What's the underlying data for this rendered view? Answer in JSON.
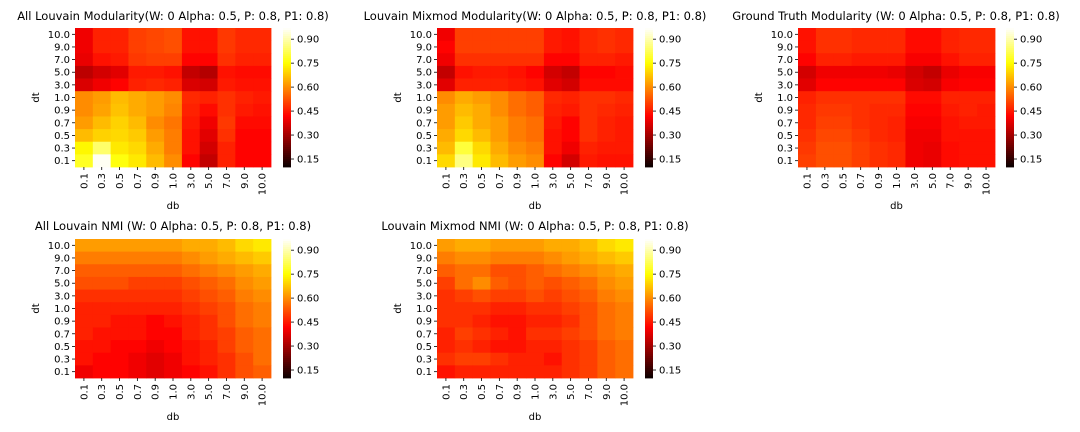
{
  "chart_data": [
    {
      "type": "heatmap",
      "title": "All Louvain Modularity(W: 0 Alpha: 0.5, P: 0.8, P1: 0.8)",
      "xlabel": "db",
      "ylabel": "dt",
      "x_categories": [
        "0.1",
        "0.3",
        "0.5",
        "0.7",
        "0.9",
        "1.0",
        "3.0",
        "5.0",
        "7.0",
        "9.0",
        "10.0"
      ],
      "y_categories": [
        "10.0",
        "9.0",
        "7.0",
        "5.0",
        "3.0",
        "1.0",
        "0.9",
        "0.7",
        "0.5",
        "0.3",
        "0.1"
      ],
      "values": [
        [
          0.4,
          0.46,
          0.46,
          0.5,
          0.51,
          0.52,
          0.44,
          0.44,
          0.49,
          0.47,
          0.47
        ],
        [
          0.4,
          0.46,
          0.46,
          0.5,
          0.51,
          0.52,
          0.44,
          0.44,
          0.49,
          0.47,
          0.47
        ],
        [
          0.39,
          0.44,
          0.45,
          0.49,
          0.5,
          0.5,
          0.42,
          0.42,
          0.48,
          0.46,
          0.46
        ],
        [
          0.33,
          0.36,
          0.38,
          0.45,
          0.45,
          0.44,
          0.34,
          0.32,
          0.44,
          0.43,
          0.43
        ],
        [
          0.37,
          0.4,
          0.42,
          0.46,
          0.47,
          0.46,
          0.37,
          0.36,
          0.45,
          0.44,
          0.44
        ],
        [
          0.6,
          0.62,
          0.66,
          0.64,
          0.62,
          0.6,
          0.47,
          0.46,
          0.48,
          0.46,
          0.45
        ],
        [
          0.6,
          0.63,
          0.67,
          0.64,
          0.62,
          0.59,
          0.46,
          0.43,
          0.48,
          0.45,
          0.44
        ],
        [
          0.62,
          0.66,
          0.69,
          0.66,
          0.6,
          0.57,
          0.45,
          0.4,
          0.49,
          0.43,
          0.43
        ],
        [
          0.66,
          0.69,
          0.7,
          0.68,
          0.62,
          0.58,
          0.44,
          0.38,
          0.48,
          0.42,
          0.42
        ],
        [
          0.74,
          0.84,
          0.72,
          0.7,
          0.64,
          0.58,
          0.44,
          0.36,
          0.46,
          0.42,
          0.42
        ],
        [
          0.78,
          0.96,
          0.76,
          0.72,
          0.66,
          0.6,
          0.42,
          0.34,
          0.46,
          0.42,
          0.42
        ]
      ],
      "colorbar": {
        "ticks": [
          "0.15",
          "0.30",
          "0.45",
          "0.60",
          "0.75",
          "0.90"
        ],
        "range": [
          0.1,
          0.97
        ],
        "colormap": "hot"
      }
    },
    {
      "type": "heatmap",
      "title": "Louvain Mixmod Modularity(W: 0 Alpha: 0.5, P: 0.8, P1: 0.8)",
      "xlabel": "db",
      "ylabel": "dt",
      "x_categories": [
        "0.1",
        "0.3",
        "0.5",
        "0.7",
        "0.9",
        "1.0",
        "3.0",
        "5.0",
        "7.0",
        "9.0",
        "10.0"
      ],
      "y_categories": [
        "10.0",
        "9.0",
        "7.0",
        "5.0",
        "3.0",
        "1.0",
        "0.9",
        "0.7",
        "0.5",
        "0.3",
        "0.1"
      ],
      "values": [
        [
          0.4,
          0.5,
          0.5,
          0.5,
          0.5,
          0.5,
          0.45,
          0.44,
          0.47,
          0.48,
          0.47
        ],
        [
          0.42,
          0.5,
          0.5,
          0.5,
          0.5,
          0.5,
          0.45,
          0.44,
          0.47,
          0.48,
          0.47
        ],
        [
          0.4,
          0.48,
          0.48,
          0.48,
          0.48,
          0.48,
          0.42,
          0.42,
          0.46,
          0.46,
          0.45
        ],
        [
          0.34,
          0.44,
          0.45,
          0.45,
          0.44,
          0.42,
          0.36,
          0.34,
          0.42,
          0.42,
          0.43
        ],
        [
          0.38,
          0.46,
          0.46,
          0.46,
          0.45,
          0.44,
          0.38,
          0.36,
          0.43,
          0.43,
          0.43
        ],
        [
          0.6,
          0.64,
          0.62,
          0.6,
          0.56,
          0.54,
          0.47,
          0.46,
          0.48,
          0.48,
          0.47
        ],
        [
          0.62,
          0.66,
          0.64,
          0.6,
          0.56,
          0.54,
          0.46,
          0.45,
          0.48,
          0.47,
          0.46
        ],
        [
          0.62,
          0.68,
          0.64,
          0.62,
          0.58,
          0.56,
          0.45,
          0.42,
          0.48,
          0.46,
          0.45
        ],
        [
          0.64,
          0.7,
          0.66,
          0.62,
          0.58,
          0.56,
          0.44,
          0.42,
          0.48,
          0.46,
          0.45
        ],
        [
          0.66,
          0.8,
          0.7,
          0.64,
          0.6,
          0.58,
          0.44,
          0.4,
          0.46,
          0.45,
          0.45
        ],
        [
          0.7,
          0.86,
          0.72,
          0.66,
          0.62,
          0.6,
          0.42,
          0.36,
          0.45,
          0.44,
          0.44
        ]
      ],
      "colorbar": {
        "ticks": [
          "0.15",
          "0.30",
          "0.45",
          "0.60",
          "0.75",
          "0.90"
        ],
        "range": [
          0.1,
          0.97
        ],
        "colormap": "hot"
      }
    },
    {
      "type": "heatmap",
      "title": "Ground Truth Modularity (W: 0 Alpha: 0.5, P: 0.8, P1: 0.8)",
      "xlabel": "db",
      "ylabel": "dt",
      "x_categories": [
        "0.1",
        "0.3",
        "0.5",
        "0.7",
        "0.9",
        "1.0",
        "3.0",
        "5.0",
        "7.0",
        "9.0",
        "10.0"
      ],
      "y_categories": [
        "10.0",
        "9.0",
        "7.0",
        "5.0",
        "3.0",
        "1.0",
        "0.9",
        "0.7",
        "0.5",
        "0.3",
        "0.1"
      ],
      "values": [
        [
          0.44,
          0.48,
          0.48,
          0.47,
          0.47,
          0.47,
          0.43,
          0.43,
          0.46,
          0.47,
          0.47
        ],
        [
          0.44,
          0.48,
          0.48,
          0.47,
          0.47,
          0.47,
          0.43,
          0.43,
          0.46,
          0.47,
          0.47
        ],
        [
          0.42,
          0.46,
          0.46,
          0.45,
          0.45,
          0.45,
          0.41,
          0.41,
          0.44,
          0.46,
          0.46
        ],
        [
          0.36,
          0.4,
          0.4,
          0.4,
          0.4,
          0.39,
          0.36,
          0.34,
          0.39,
          0.41,
          0.41
        ],
        [
          0.38,
          0.42,
          0.42,
          0.42,
          0.42,
          0.42,
          0.37,
          0.36,
          0.41,
          0.42,
          0.42
        ],
        [
          0.46,
          0.48,
          0.48,
          0.48,
          0.48,
          0.48,
          0.43,
          0.43,
          0.46,
          0.46,
          0.46
        ],
        [
          0.47,
          0.49,
          0.49,
          0.48,
          0.47,
          0.47,
          0.42,
          0.42,
          0.45,
          0.46,
          0.45
        ],
        [
          0.47,
          0.5,
          0.5,
          0.48,
          0.47,
          0.46,
          0.41,
          0.41,
          0.44,
          0.45,
          0.45
        ],
        [
          0.48,
          0.51,
          0.51,
          0.49,
          0.47,
          0.46,
          0.4,
          0.4,
          0.44,
          0.44,
          0.44
        ],
        [
          0.49,
          0.52,
          0.52,
          0.5,
          0.48,
          0.47,
          0.4,
          0.39,
          0.43,
          0.44,
          0.44
        ],
        [
          0.5,
          0.52,
          0.52,
          0.5,
          0.48,
          0.47,
          0.4,
          0.39,
          0.43,
          0.44,
          0.44
        ]
      ],
      "colorbar": {
        "ticks": [
          "0.15",
          "0.30",
          "0.45",
          "0.60",
          "0.75",
          "0.90"
        ],
        "range": [
          0.1,
          0.97
        ],
        "colormap": "hot"
      }
    },
    {
      "type": "heatmap",
      "title": "All Louvain NMI (W: 0 Alpha: 0.5, P: 0.8, P1: 0.8)",
      "xlabel": "db",
      "ylabel": "dt",
      "x_categories": [
        "0.1",
        "0.3",
        "0.5",
        "0.7",
        "0.9",
        "1.0",
        "3.0",
        "5.0",
        "7.0",
        "9.0",
        "10.0"
      ],
      "y_categories": [
        "10.0",
        "9.0",
        "7.0",
        "5.0",
        "3.0",
        "1.0",
        "0.9",
        "0.7",
        "0.5",
        "0.3",
        "0.1"
      ],
      "values": [
        [
          0.62,
          0.62,
          0.62,
          0.62,
          0.62,
          0.62,
          0.64,
          0.64,
          0.66,
          0.7,
          0.72
        ],
        [
          0.58,
          0.58,
          0.58,
          0.58,
          0.58,
          0.58,
          0.6,
          0.62,
          0.64,
          0.66,
          0.68
        ],
        [
          0.54,
          0.54,
          0.54,
          0.54,
          0.54,
          0.54,
          0.56,
          0.58,
          0.6,
          0.62,
          0.64
        ],
        [
          0.52,
          0.52,
          0.52,
          0.5,
          0.5,
          0.5,
          0.52,
          0.54,
          0.56,
          0.6,
          0.62
        ],
        [
          0.48,
          0.48,
          0.48,
          0.48,
          0.48,
          0.48,
          0.5,
          0.52,
          0.54,
          0.58,
          0.6
        ],
        [
          0.46,
          0.46,
          0.46,
          0.46,
          0.46,
          0.46,
          0.48,
          0.5,
          0.52,
          0.56,
          0.58
        ],
        [
          0.46,
          0.46,
          0.44,
          0.44,
          0.42,
          0.44,
          0.46,
          0.48,
          0.52,
          0.56,
          0.58
        ],
        [
          0.46,
          0.44,
          0.44,
          0.44,
          0.42,
          0.42,
          0.46,
          0.48,
          0.5,
          0.54,
          0.56
        ],
        [
          0.44,
          0.44,
          0.42,
          0.42,
          0.4,
          0.42,
          0.44,
          0.46,
          0.5,
          0.54,
          0.56
        ],
        [
          0.44,
          0.42,
          0.42,
          0.4,
          0.38,
          0.4,
          0.44,
          0.46,
          0.48,
          0.52,
          0.56
        ],
        [
          0.4,
          0.42,
          0.42,
          0.4,
          0.38,
          0.4,
          0.42,
          0.44,
          0.48,
          0.52,
          0.54
        ]
      ],
      "colorbar": {
        "ticks": [
          "0.15",
          "0.30",
          "0.45",
          "0.60",
          "0.75",
          "0.90"
        ],
        "range": [
          0.1,
          0.97
        ],
        "colormap": "hot"
      }
    },
    {
      "type": "heatmap",
      "title": "Louvain Mixmod NMI (W: 0 Alpha: 0.5, P: 0.8, P1: 0.8)",
      "xlabel": "db",
      "ylabel": "dt",
      "x_categories": [
        "0.1",
        "0.3",
        "0.5",
        "0.7",
        "0.9",
        "1.0",
        "3.0",
        "5.0",
        "7.0",
        "9.0",
        "10.0"
      ],
      "y_categories": [
        "10.0",
        "9.0",
        "7.0",
        "5.0",
        "3.0",
        "1.0",
        "0.9",
        "0.7",
        "0.5",
        "0.3",
        "0.1"
      ],
      "values": [
        [
          0.62,
          0.64,
          0.64,
          0.62,
          0.62,
          0.62,
          0.64,
          0.64,
          0.66,
          0.7,
          0.72
        ],
        [
          0.58,
          0.6,
          0.6,
          0.58,
          0.58,
          0.58,
          0.6,
          0.62,
          0.64,
          0.66,
          0.68
        ],
        [
          0.54,
          0.56,
          0.56,
          0.52,
          0.52,
          0.54,
          0.56,
          0.58,
          0.6,
          0.62,
          0.64
        ],
        [
          0.5,
          0.56,
          0.6,
          0.54,
          0.52,
          0.54,
          0.52,
          0.54,
          0.56,
          0.6,
          0.62
        ],
        [
          0.48,
          0.5,
          0.52,
          0.5,
          0.5,
          0.52,
          0.5,
          0.52,
          0.54,
          0.58,
          0.6
        ],
        [
          0.48,
          0.48,
          0.48,
          0.46,
          0.46,
          0.48,
          0.48,
          0.5,
          0.52,
          0.56,
          0.58
        ],
        [
          0.48,
          0.48,
          0.46,
          0.44,
          0.44,
          0.46,
          0.46,
          0.48,
          0.52,
          0.56,
          0.58
        ],
        [
          0.46,
          0.5,
          0.48,
          0.46,
          0.44,
          0.48,
          0.48,
          0.5,
          0.52,
          0.56,
          0.58
        ],
        [
          0.46,
          0.48,
          0.46,
          0.44,
          0.44,
          0.46,
          0.46,
          0.48,
          0.5,
          0.54,
          0.56
        ],
        [
          0.48,
          0.5,
          0.5,
          0.48,
          0.46,
          0.46,
          0.44,
          0.48,
          0.5,
          0.54,
          0.56
        ],
        [
          0.44,
          0.46,
          0.46,
          0.46,
          0.46,
          0.46,
          0.46,
          0.48,
          0.5,
          0.54,
          0.56
        ]
      ],
      "colorbar": {
        "ticks": [
          "0.15",
          "0.30",
          "0.45",
          "0.60",
          "0.75",
          "0.90"
        ],
        "range": [
          0.1,
          0.97
        ],
        "colormap": "hot"
      }
    }
  ]
}
